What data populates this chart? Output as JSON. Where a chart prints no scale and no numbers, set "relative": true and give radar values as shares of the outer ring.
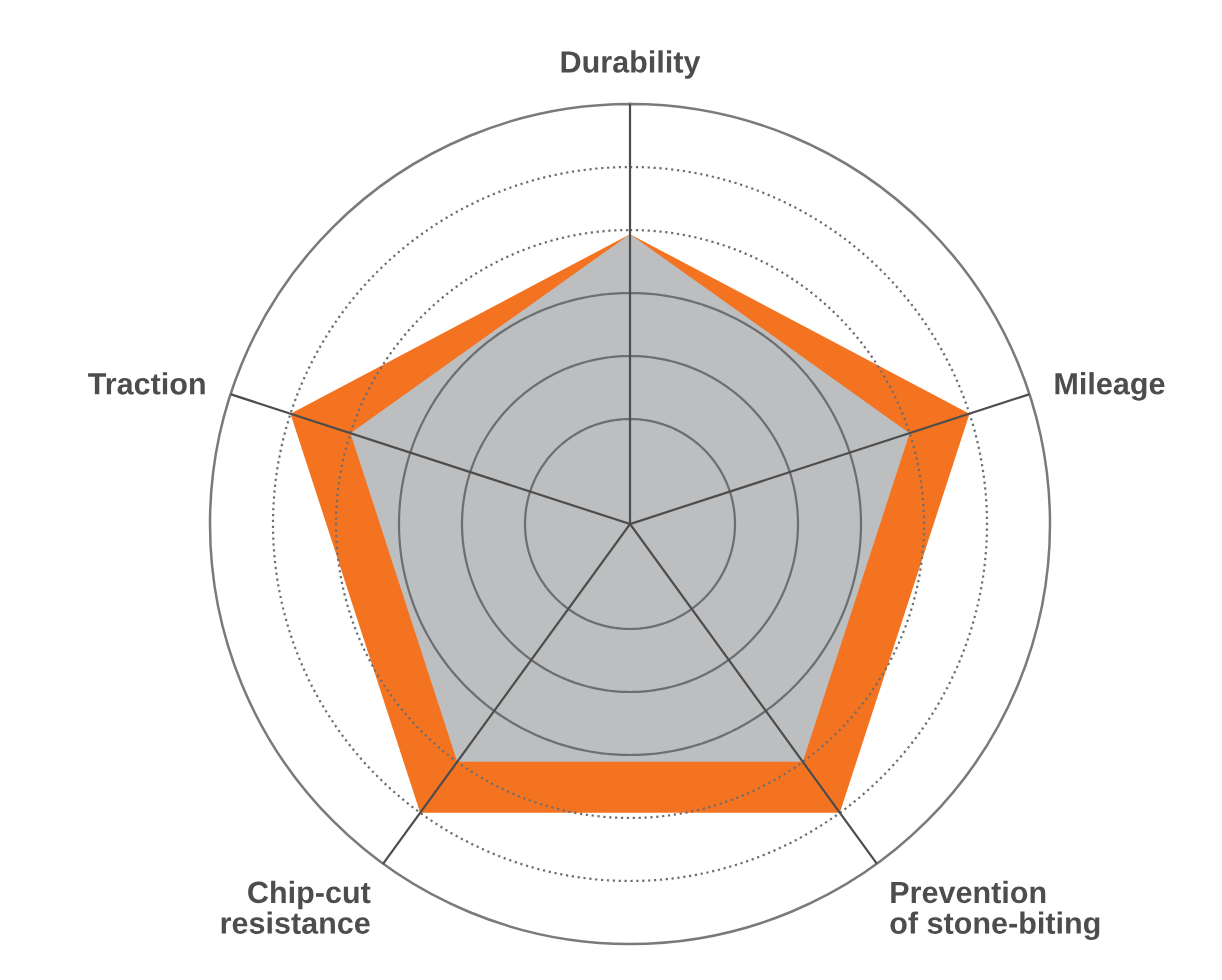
{
  "chart_data": {
    "type": "radar",
    "relative": true,
    "categories": [
      "Durability",
      "Mileage",
      "Prevention\nof stone-biting",
      "Chip-cut\nresistance",
      "Traction"
    ],
    "series": [
      {
        "color": "#f47321",
        "values": [
          0.69,
          0.85,
          0.85,
          0.85,
          0.85
        ]
      },
      {
        "color": "#bcbec0",
        "values": [
          0.69,
          0.7,
          0.7,
          0.7,
          0.7
        ]
      }
    ],
    "grid": true
  }
}
